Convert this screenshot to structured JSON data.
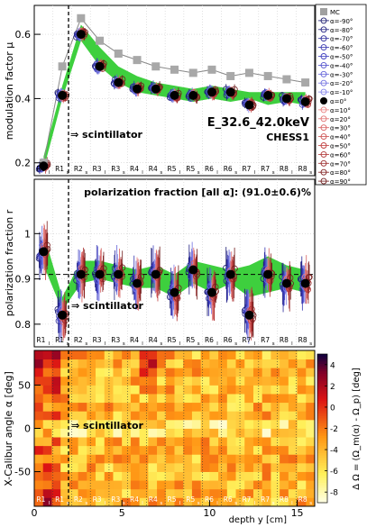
{
  "chart_data": [
    {
      "type": "scatter",
      "ylabel": "modulation factor μ",
      "ylim": [
        0.16,
        0.69
      ],
      "yticks": [
        "0.2",
        "0.4",
        "0.6"
      ],
      "annotation_energy": "E_32.6_42.0keV",
      "annotation_detector": "CHESS1",
      "annotation_scint": "⇒ scintillator",
      "categories": [
        "R1l",
        "R1s",
        "R2s",
        "R3l",
        "R3s",
        "R4l",
        "R4s",
        "R5l",
        "R5s",
        "R6l",
        "R6s",
        "R7l",
        "R7s",
        "R8l",
        "R8s"
      ],
      "mc_values": [
        0.2,
        0.5,
        0.65,
        0.58,
        0.54,
        0.52,
        0.5,
        0.49,
        0.48,
        0.49,
        0.47,
        0.48,
        0.47,
        0.46,
        0.45
      ],
      "band_upper": [
        0.22,
        0.44,
        0.63,
        0.56,
        0.5,
        0.47,
        0.45,
        0.44,
        0.43,
        0.44,
        0.43,
        0.42,
        0.42,
        0.42,
        0.42
      ],
      "band_lower": [
        0.18,
        0.4,
        0.58,
        0.5,
        0.45,
        0.42,
        0.41,
        0.4,
        0.39,
        0.4,
        0.39,
        0.4,
        0.38,
        0.39,
        0.38
      ],
      "data_values": [
        0.19,
        0.41,
        0.6,
        0.5,
        0.45,
        0.43,
        0.43,
        0.41,
        0.41,
        0.42,
        0.42,
        0.38,
        0.41,
        0.4,
        0.39
      ]
    },
    {
      "type": "scatter",
      "ylabel": "polarization fraction r",
      "ylim": [
        0.75,
        1.12
      ],
      "yticks": [
        "0.8",
        "0.9",
        "1"
      ],
      "title": "polarization fraction [all α]: (91.0±0.6)%",
      "annotation_scint": "⇒ scintillator",
      "reference_line": 0.91,
      "band_upper": [
        1.0,
        0.86,
        0.94,
        0.94,
        0.93,
        0.92,
        0.93,
        0.91,
        0.94,
        0.93,
        0.92,
        0.93,
        0.95,
        0.93,
        0.92
      ],
      "band_lower": [
        0.93,
        0.83,
        0.89,
        0.9,
        0.89,
        0.88,
        0.88,
        0.86,
        0.89,
        0.87,
        0.89,
        0.86,
        0.87,
        0.88,
        0.87
      ],
      "data_values": [
        0.96,
        0.82,
        0.91,
        0.91,
        0.91,
        0.89,
        0.91,
        0.87,
        0.92,
        0.87,
        0.91,
        0.82,
        0.91,
        0.89,
        0.89
      ]
    },
    {
      "type": "heatmap",
      "ylabel": "X-Calibur angle α [deg]",
      "xlabel": "depth y [cm]",
      "zlabel": "Δ Ω = (Ω_m(α) - Ω_p) [deg]",
      "xlim": [
        0,
        16
      ],
      "ylim": [
        -90,
        90
      ],
      "xticks": [
        "0",
        "5",
        "10",
        "15"
      ],
      "yticks": [
        "-50",
        "0",
        "50"
      ],
      "zticks": [
        "4",
        "2",
        "0",
        "-2",
        "-4",
        "-6",
        "-8"
      ],
      "zlim": [
        -9,
        5
      ],
      "annotation_scint": "⇒ scintillator"
    }
  ],
  "legend": {
    "items": [
      {
        "label": "MC",
        "marker": "square",
        "color": "#a0a0a0"
      },
      {
        "label": "α=-90°",
        "color": "#1a1a6e"
      },
      {
        "label": "α=-80°",
        "color": "#202080"
      },
      {
        "label": "α=-70°",
        "color": "#2a2a9a"
      },
      {
        "label": "α=-60°",
        "color": "#3535b0"
      },
      {
        "label": "α=-50°",
        "color": "#4040c0"
      },
      {
        "label": "α=-40°",
        "color": "#5050cc"
      },
      {
        "label": "α=-30°",
        "color": "#6060d8"
      },
      {
        "label": "α=-20°",
        "color": "#7070e0"
      },
      {
        "label": "α=-10°",
        "color": "#8080ea"
      },
      {
        "label": "α=0°",
        "color": "#000000",
        "marker": "filled"
      },
      {
        "label": "α=10°",
        "color": "#ea8080"
      },
      {
        "label": "α=20°",
        "color": "#e07070"
      },
      {
        "label": "α=30°",
        "color": "#d86060"
      },
      {
        "label": "α=40°",
        "color": "#cc5050"
      },
      {
        "label": "α=50°",
        "color": "#c04040"
      },
      {
        "label": "α=60°",
        "color": "#b03535"
      },
      {
        "label": "α=70°",
        "color": "#9a2a2a"
      },
      {
        "label": "α=80°",
        "color": "#802020"
      },
      {
        "label": "α=90°",
        "color": "#6e1a1a"
      }
    ]
  }
}
